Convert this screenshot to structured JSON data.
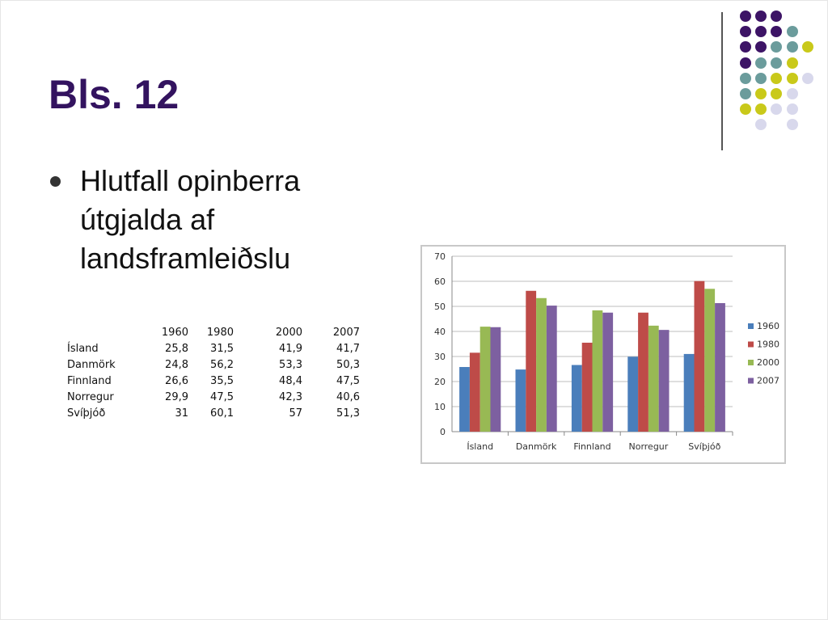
{
  "slide": {
    "title": "Bls. 12",
    "bullet": "Hlutfall opinberra útgjalda af landsframleiðslu"
  },
  "decor": {
    "colors": {
      "P": "#3d1466",
      "T": "#6b9c9c",
      "Y": "#c9c91a",
      "L": "#d8d8ec"
    },
    "dot_rows": [
      "PPP..",
      "PPPT.",
      "PPTTY",
      "PTTY.",
      "TTYYL",
      "TYYL.",
      "YYLL.",
      ".L.L."
    ]
  },
  "table": {
    "headers": [
      "",
      "1960",
      "1980",
      "2000",
      "2007"
    ],
    "rows": [
      [
        "Ísland",
        "25,8",
        "31,5",
        "41,9",
        "41,7"
      ],
      [
        "Danmörk",
        "24,8",
        "56,2",
        "53,3",
        "50,3"
      ],
      [
        "Finnland",
        "26,6",
        "35,5",
        "48,4",
        "47,5"
      ],
      [
        "Norregur",
        "29,9",
        "47,5",
        "42,3",
        "40,6"
      ],
      [
        "Svíþjóð",
        "31",
        "60,1",
        "57",
        "51,3"
      ]
    ]
  },
  "chart_data": {
    "type": "bar",
    "categories": [
      "Ísland",
      "Danmörk",
      "Finnland",
      "Norregur",
      "Svíþjóð"
    ],
    "series": [
      {
        "name": "1960",
        "color": "#4a7ebb",
        "values": [
          25.8,
          24.8,
          26.6,
          29.9,
          31
        ]
      },
      {
        "name": "1980",
        "color": "#be4b48",
        "values": [
          31.5,
          56.2,
          35.5,
          47.5,
          60.1
        ]
      },
      {
        "name": "2000",
        "color": "#98b954",
        "values": [
          41.9,
          53.3,
          48.4,
          42.3,
          57
        ]
      },
      {
        "name": "2007",
        "color": "#7d60a0",
        "values": [
          41.7,
          50.3,
          47.5,
          40.6,
          51.3
        ]
      }
    ],
    "ylim": [
      0,
      70
    ],
    "yticks": [
      "0",
      "10",
      "20",
      "30",
      "40",
      "50",
      "60",
      "70"
    ],
    "grid": true,
    "legend": "right"
  }
}
